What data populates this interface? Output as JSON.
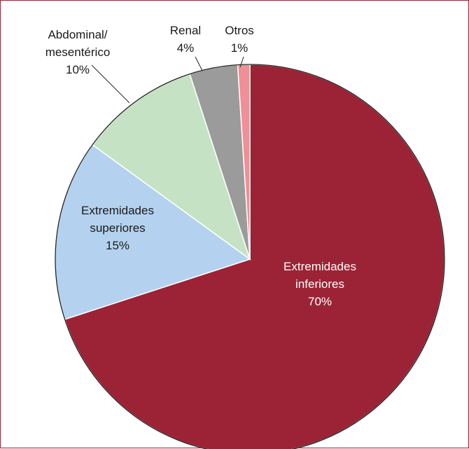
{
  "chart_data": {
    "type": "pie",
    "title": "",
    "start": "12 o'clock",
    "direction": "clockwise",
    "slices": [
      {
        "key": "inferiores",
        "label_lines": [
          "Extremidades",
          "inferiores",
          "70%"
        ],
        "value": 70,
        "color": "#9b2335",
        "label_color": "#ffffff"
      },
      {
        "key": "superiores",
        "label_lines": [
          "Extremidades",
          "superiores",
          "15%"
        ],
        "value": 15,
        "color": "#b4d2ef",
        "label_color": "#1a1a1a"
      },
      {
        "key": "abdominal",
        "label_lines": [
          "Abdominal/",
          "mesentérico",
          "10%"
        ],
        "value": 10,
        "color": "#c5e3c4",
        "label_color": "#1a1a1a"
      },
      {
        "key": "renal",
        "label_lines": [
          "Renal",
          "4%"
        ],
        "value": 4,
        "color": "#9c9b9b",
        "label_color": "#1a1a1a"
      },
      {
        "key": "otros",
        "label_lines": [
          "Otros",
          "1%"
        ],
        "value": 1,
        "color": "#f08f95",
        "label_color": "#1a1a1a"
      }
    ]
  }
}
